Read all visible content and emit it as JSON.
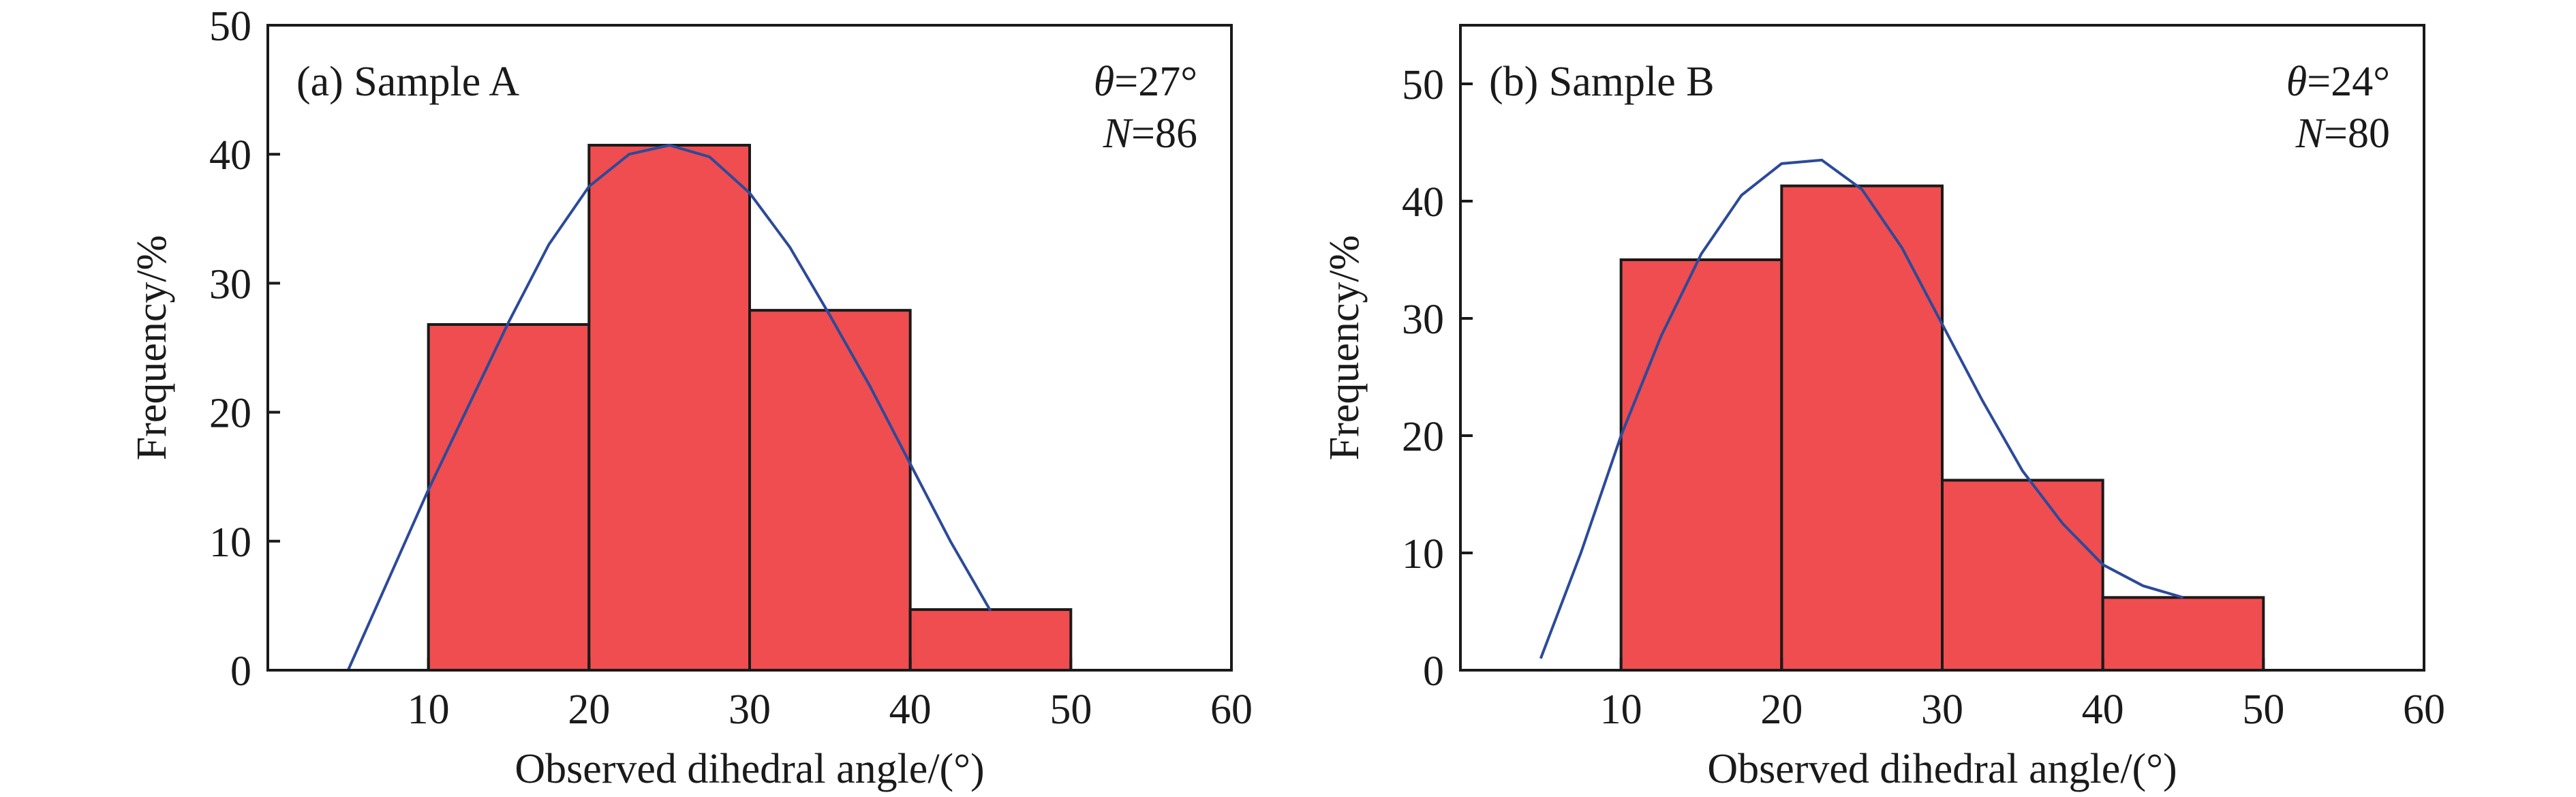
{
  "colors": {
    "bar": "#ef4d4f",
    "curve": "#2c4a9a",
    "frame": "#1a1a1a"
  },
  "chart_data": [
    {
      "type": "bar",
      "panel_label": "(a) Sample A",
      "theta_symbol": "θ",
      "theta_value": "=27°",
      "n_symbol": "N",
      "n_value": "=86",
      "xlabel": "Observed dihedral angle/(°)",
      "ylabel": "Frequency/%",
      "xlim": [
        0,
        60
      ],
      "ylim": [
        0,
        50
      ],
      "x_ticks": [
        10,
        20,
        30,
        40,
        50,
        60
      ],
      "y_ticks": [
        0,
        10,
        20,
        30,
        40,
        50
      ],
      "bins": [
        {
          "x0": 10,
          "x1": 20,
          "value": 26.8
        },
        {
          "x0": 20,
          "x1": 30,
          "value": 40.7
        },
        {
          "x0": 30,
          "x1": 40,
          "value": 27.9
        },
        {
          "x0": 40,
          "x1": 50,
          "value": 4.7
        }
      ],
      "fit_curve": {
        "x": [
          5,
          7.5,
          10,
          12.5,
          15,
          17.5,
          20,
          22.5,
          25,
          27.5,
          30,
          32.5,
          35,
          37.5,
          40,
          42.5,
          45
        ],
        "y": [
          0,
          7,
          14,
          20.5,
          27,
          33,
          37.5,
          40,
          40.7,
          39.8,
          37,
          32.8,
          27.5,
          22,
          16,
          10,
          4.6
        ]
      }
    },
    {
      "type": "bar",
      "panel_label": "(b) Sample B",
      "theta_symbol": "θ",
      "theta_value": "=24°",
      "n_symbol": "N",
      "n_value": "=80",
      "xlabel": "Observed dihedral angle/(°)",
      "ylabel": "Frequency/%",
      "xlim": [
        0,
        60
      ],
      "ylim": [
        0,
        55
      ],
      "x_ticks": [
        10,
        20,
        30,
        40,
        50,
        60
      ],
      "y_ticks": [
        0,
        10,
        20,
        30,
        40,
        50
      ],
      "bins": [
        {
          "x0": 10,
          "x1": 20,
          "value": 35.0
        },
        {
          "x0": 20,
          "x1": 30,
          "value": 41.3
        },
        {
          "x0": 30,
          "x1": 40,
          "value": 16.2
        },
        {
          "x0": 40,
          "x1": 50,
          "value": 6.2
        }
      ],
      "fit_curve": {
        "x": [
          5,
          7.5,
          10,
          12.5,
          15,
          17.5,
          20,
          22.5,
          25,
          27.5,
          30,
          32.5,
          35,
          37.5,
          40,
          42.5,
          45
        ],
        "y": [
          1,
          10,
          20,
          28.5,
          35.5,
          40.5,
          43.2,
          43.5,
          41,
          36,
          29.5,
          23,
          17,
          12.5,
          9,
          7.2,
          6.2
        ]
      }
    }
  ]
}
